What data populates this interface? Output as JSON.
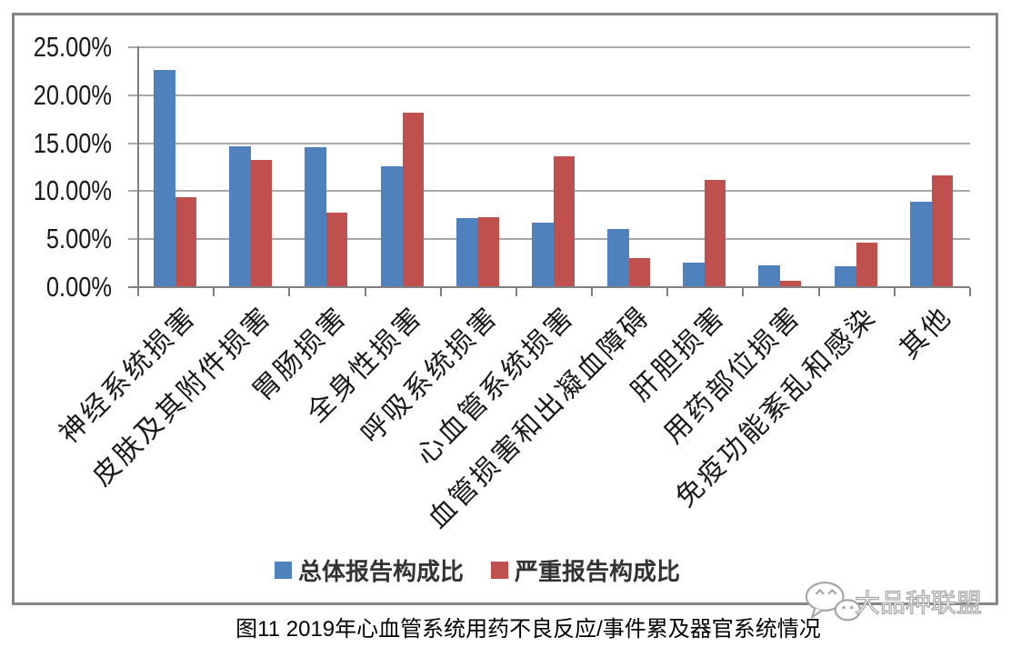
{
  "chart_data": {
    "type": "bar",
    "categories": [
      "神经系统损害",
      "皮肤及其附件损害",
      "胃肠损害",
      "全身性损害",
      "呼吸系统损害",
      "心血管系统损害",
      "血管损害和出凝血障碍",
      "肝胆损害",
      "用药部位损害",
      "免疫功能紊乱和感染",
      "其他"
    ],
    "series": [
      {
        "name": "总体报告构成比",
        "color": "#4F81BD",
        "values": [
          22.6,
          14.7,
          14.6,
          12.6,
          7.2,
          6.7,
          6.1,
          2.6,
          2.3,
          2.2,
          8.9
        ]
      },
      {
        "name": "严重报告构成比",
        "color": "#C0504D",
        "values": [
          9.4,
          13.3,
          7.8,
          18.2,
          7.3,
          13.6,
          3.0,
          11.2,
          0.7,
          4.6,
          11.6
        ]
      }
    ],
    "ylim": [
      0,
      25
    ],
    "ytick_step": 5,
    "ytick_labels": [
      "0.00%",
      "5.00%",
      "10.00%",
      "15.00%",
      "20.00%",
      "25.00%"
    ],
    "grid": "horizontal",
    "legend_position": "bottom"
  },
  "caption": "图11 2019年心血管系统用药不良反应/事件累及器官系统情况",
  "watermark": {
    "text": "大品种联盟",
    "icon": "wechat-icon"
  }
}
